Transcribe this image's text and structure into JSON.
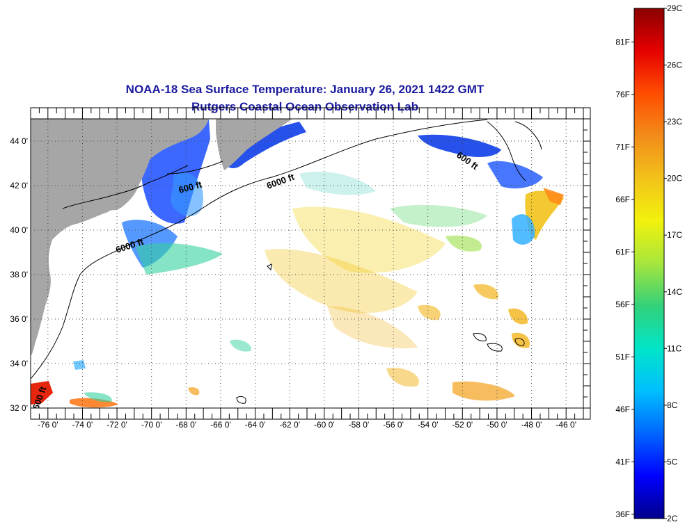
{
  "title": "NOAA-18 Sea Surface Temperature:  January 26, 2021 1422 GMT",
  "subtitle": "Rutgers Coastal Ocean Observation Lab",
  "map": {
    "lon_min": -77,
    "lon_max": -45,
    "lat_min": 32,
    "lat_max": 45,
    "lat_ticks": [
      {
        "value": 44,
        "label": "44 0'"
      },
      {
        "value": 42,
        "label": "42 0'"
      },
      {
        "value": 40,
        "label": "40 0'"
      },
      {
        "value": 38,
        "label": "38 0'"
      },
      {
        "value": 36,
        "label": "36 0'"
      },
      {
        "value": 34,
        "label": "34 0'"
      },
      {
        "value": 32,
        "label": "32 0'"
      }
    ],
    "lon_ticks": [
      {
        "value": -76,
        "label": "-76 0'"
      },
      {
        "value": -74,
        "label": "-74 0'"
      },
      {
        "value": -72,
        "label": "-72 0'"
      },
      {
        "value": -70,
        "label": "-70 0'"
      },
      {
        "value": -68,
        "label": "-68 0'"
      },
      {
        "value": -66,
        "label": "-66 0'"
      },
      {
        "value": -64,
        "label": "-64 0'"
      },
      {
        "value": -62,
        "label": "-62 0'"
      },
      {
        "value": -60,
        "label": "-60 0'"
      },
      {
        "value": -58,
        "label": "-58 0'"
      },
      {
        "value": -56,
        "label": "-56 0'"
      },
      {
        "value": -54,
        "label": "-54 0'"
      },
      {
        "value": -52,
        "label": "-52 0'"
      },
      {
        "value": -50,
        "label": "-50 0'"
      },
      {
        "value": -48,
        "label": "-48 0'"
      },
      {
        "value": -46,
        "label": "-46 0'"
      }
    ],
    "depth_labels": [
      "600 ft",
      "6000 ft",
      "6000 ft",
      "600 ft",
      "600 ft"
    ],
    "land_color": "#a6a6a6"
  },
  "colorbar": {
    "min_c": 2,
    "max_c": 29,
    "celsius_labels": [
      {
        "value": 29,
        "label": "29C"
      },
      {
        "value": 26,
        "label": "26C"
      },
      {
        "value": 23,
        "label": "23C"
      },
      {
        "value": 20,
        "label": "20C"
      },
      {
        "value": 17,
        "label": "17C"
      },
      {
        "value": 14,
        "label": "14C"
      },
      {
        "value": 11,
        "label": "11C"
      },
      {
        "value": 8,
        "label": "8C"
      },
      {
        "value": 5,
        "label": "5C"
      },
      {
        "value": 2,
        "label": "2C"
      }
    ],
    "fahrenheit_labels": [
      {
        "value": 81,
        "label": "81F"
      },
      {
        "value": 76,
        "label": "76F"
      },
      {
        "value": 71,
        "label": "71F"
      },
      {
        "value": 66,
        "label": "66F"
      },
      {
        "value": 61,
        "label": "61F"
      },
      {
        "value": 56,
        "label": "56F"
      },
      {
        "value": 51,
        "label": "51F"
      },
      {
        "value": 46,
        "label": "46F"
      },
      {
        "value": 41,
        "label": "41F"
      },
      {
        "value": 36,
        "label": "36F"
      }
    ],
    "colors": [
      "#00008b",
      "#0000ff",
      "#0066ff",
      "#00bfff",
      "#00e5c8",
      "#33d17a",
      "#a6e63c",
      "#f2f20d",
      "#f2c21a",
      "#f28c1a",
      "#ff4d00",
      "#e60000",
      "#8b0000"
    ]
  }
}
